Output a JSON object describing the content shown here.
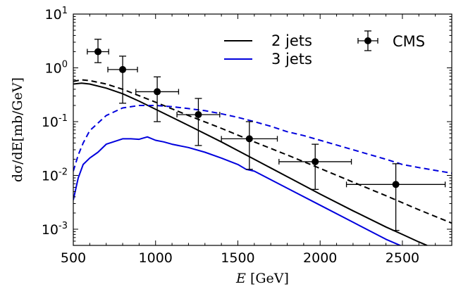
{
  "chart_data": {
    "type": "line",
    "xlabel": "E [GeV]",
    "ylabel": "dσ/dE[mb/GeV]",
    "xlim": [
      500,
      2800
    ],
    "ylim": [
      0.0005,
      10
    ],
    "yscale": "log",
    "x_ticks": [
      "500",
      "1000",
      "1500",
      "2000",
      "2500"
    ],
    "y_ticks": [
      {
        "value": 10,
        "base": "10",
        "exp": "1"
      },
      {
        "value": 1,
        "base": "10",
        "exp": "0"
      },
      {
        "value": 0.1,
        "base": "10",
        "exp": "-1"
      },
      {
        "value": 0.01,
        "base": "10",
        "exp": "-2"
      },
      {
        "value": 0.001,
        "base": "10",
        "exp": "-3"
      }
    ],
    "grid": false,
    "legend_position": "top-right",
    "series": [
      {
        "name": "2 jets",
        "color": "#000000",
        "style": "solid",
        "x": [
          500,
          550,
          600,
          700,
          800,
          900,
          1000,
          1200,
          1400,
          1600,
          1800,
          2000,
          2200,
          2400,
          2500,
          2600,
          2650
        ],
        "y": [
          0.5,
          0.52,
          0.5,
          0.42,
          0.33,
          0.24,
          0.17,
          0.085,
          0.042,
          0.02,
          0.0095,
          0.0045,
          0.0022,
          0.0011,
          0.0008,
          0.00058,
          0.0005
        ]
      },
      {
        "name": "",
        "color": "#000000",
        "style": "dashed",
        "x": [
          500,
          550,
          600,
          700,
          800,
          1000,
          1200,
          1400,
          1600,
          1800,
          2000,
          2200,
          2400,
          2600,
          2800
        ],
        "y": [
          0.56,
          0.6,
          0.58,
          0.5,
          0.4,
          0.23,
          0.13,
          0.075,
          0.042,
          0.024,
          0.0135,
          0.0075,
          0.0042,
          0.0023,
          0.0013
        ]
      },
      {
        "name": "3 jets",
        "color": "#0000dd",
        "style": "solid",
        "x": [
          500,
          530,
          560,
          600,
          650,
          700,
          800,
          850,
          900,
          950,
          1000,
          1050,
          1100,
          1200,
          1300,
          1400,
          1500,
          1550,
          1600,
          1800,
          2000,
          2200,
          2400,
          2500
        ],
        "y": [
          0.0035,
          0.009,
          0.016,
          0.021,
          0.027,
          0.038,
          0.048,
          0.048,
          0.047,
          0.052,
          0.045,
          0.042,
          0.038,
          0.033,
          0.027,
          0.021,
          0.016,
          0.013,
          0.012,
          0.0058,
          0.0028,
          0.00135,
          0.00065,
          0.00048
        ]
      },
      {
        "name": "",
        "color": "#0000dd",
        "style": "dashed",
        "x": [
          500,
          530,
          560,
          600,
          700,
          800,
          900,
          1000,
          1100,
          1200,
          1300,
          1400,
          1500,
          1600,
          1700,
          1800,
          1900,
          2000,
          2200,
          2400,
          2500,
          2600,
          2800
        ],
        "y": [
          0.012,
          0.024,
          0.04,
          0.068,
          0.13,
          0.18,
          0.2,
          0.2,
          0.19,
          0.175,
          0.16,
          0.14,
          0.12,
          0.1,
          0.082,
          0.065,
          0.055,
          0.045,
          0.03,
          0.02,
          0.016,
          0.014,
          0.011
        ]
      }
    ],
    "points": {
      "name": "CMS",
      "x": [
        650,
        800,
        1010,
        1260,
        1570,
        1970,
        2460
      ],
      "y": [
        2.0,
        0.93,
        0.36,
        0.135,
        0.048,
        0.018,
        0.0068
      ],
      "x_err": [
        [
          65,
          65
        ],
        [
          90,
          90
        ],
        [
          130,
          130
        ],
        [
          130,
          130
        ],
        [
          170,
          170
        ],
        [
          220,
          220
        ],
        [
          300,
          300
        ]
      ],
      "y_err_low": [
        1.25,
        0.22,
        0.1,
        0.036,
        0.013,
        0.0055,
        0.00095
      ],
      "y_err_high": [
        3.4,
        1.65,
        0.68,
        0.27,
        0.1,
        0.038,
        0.0165
      ]
    }
  }
}
